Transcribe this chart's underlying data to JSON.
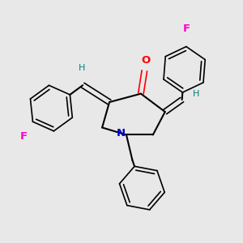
{
  "background_color": "#e8e8e8",
  "bond_color": "#000000",
  "N_color": "#0000cc",
  "O_color": "#ff0000",
  "F_color": "#ff00cc",
  "H_color": "#008080",
  "figsize": [
    3.0,
    3.0
  ],
  "dpi": 100,
  "xlim": [
    0,
    10
  ],
  "ylim": [
    0,
    10
  ]
}
